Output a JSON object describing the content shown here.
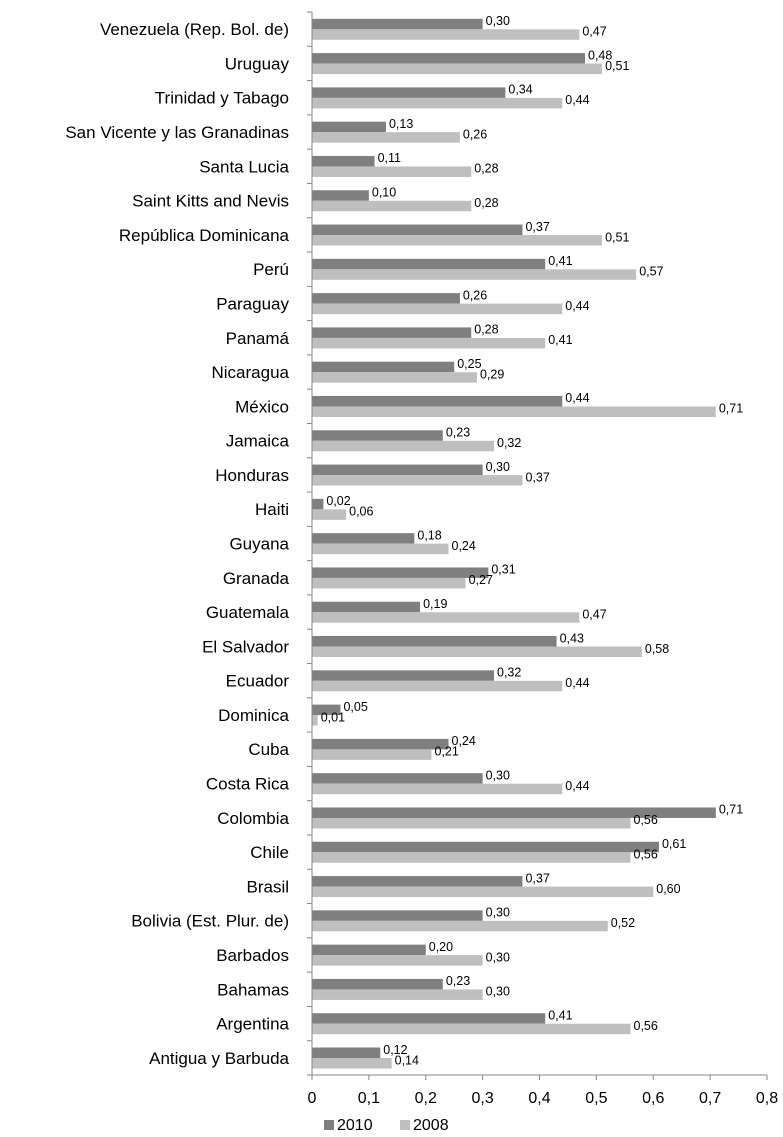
{
  "chart_data": {
    "type": "bar",
    "orientation": "horizontal",
    "categories": [
      "Venezuela (Rep. Bol. de)",
      "Uruguay",
      "Trinidad y Tabago",
      "San Vicente y las Granadinas",
      "Santa Lucia",
      "Saint Kitts and Nevis",
      "República Dominicana",
      "Perú",
      "Paraguay",
      "Panamá",
      "Nicaragua",
      "México",
      "Jamaica",
      "Honduras",
      "Haiti",
      "Guyana",
      "Granada",
      "Guatemala",
      "El Salvador",
      "Ecuador",
      "Dominica",
      "Cuba",
      "Costa Rica",
      "Colombia",
      "Chile",
      "Brasil",
      "Bolivia (Est. Plur. de)",
      "Barbados",
      "Bahamas",
      "Argentina",
      "Antigua y Barbuda"
    ],
    "series": [
      {
        "name": "2010",
        "color": "#7f7f7f",
        "values": [
          0.3,
          0.48,
          0.34,
          0.13,
          0.11,
          0.1,
          0.37,
          0.41,
          0.26,
          0.28,
          0.25,
          0.44,
          0.23,
          0.3,
          0.02,
          0.18,
          0.31,
          0.19,
          0.43,
          0.32,
          0.05,
          0.24,
          0.3,
          0.71,
          0.61,
          0.37,
          0.3,
          0.2,
          0.23,
          0.41,
          0.12
        ],
        "labels": [
          "0,30",
          "0,48",
          "0,34",
          "0,13",
          "0,11",
          "0,10",
          "0,37",
          "0,41",
          "0,26",
          "0,28",
          "0,25",
          "0,44",
          "0,23",
          "0,30",
          "0,02",
          "0,18",
          "0,31",
          "0,19",
          "0,43",
          "0,32",
          "0,05",
          "0,24",
          "0,30",
          "0,71",
          "0,61",
          "0,37",
          "0,30",
          "0,20",
          "0,23",
          "0,41",
          "0,12"
        ]
      },
      {
        "name": "2008",
        "color": "#bfbfbf",
        "values": [
          0.47,
          0.51,
          0.44,
          0.26,
          0.28,
          0.28,
          0.51,
          0.57,
          0.44,
          0.41,
          0.29,
          0.71,
          0.32,
          0.37,
          0.06,
          0.24,
          0.27,
          0.47,
          0.58,
          0.44,
          0.01,
          0.21,
          0.44,
          0.56,
          0.56,
          0.6,
          0.52,
          0.3,
          0.3,
          0.56,
          0.14
        ],
        "labels": [
          "0,47",
          "0,51",
          "0,44",
          "0,26",
          "0,28",
          "0,28",
          "0,51",
          "0,57",
          "0,44",
          "0,41",
          "0,29",
          "0,71",
          "0,32",
          "0,37",
          "0,06",
          "0,24",
          "0,27",
          "0,47",
          "0,58",
          "0,44",
          "0,01",
          "0,21",
          "0,44",
          "0,56",
          "0,56",
          "0,60",
          "0,52",
          "0,30",
          "0,30",
          "0,56",
          "0,14"
        ]
      }
    ],
    "xlim": [
      0,
      0.8
    ],
    "xticks": [
      0,
      0.1,
      0.2,
      0.3,
      0.4,
      0.5,
      0.6,
      0.7,
      0.8
    ],
    "xtick_labels": [
      "0",
      "0,1",
      "0,2",
      "0,3",
      "0,4",
      "0,5",
      "0,6",
      "0,7",
      "0,8"
    ],
    "title": "",
    "xlabel": "",
    "ylabel": "",
    "grid": false,
    "legend": {
      "position": "bottom",
      "entries": [
        "2010",
        "2008"
      ]
    }
  }
}
